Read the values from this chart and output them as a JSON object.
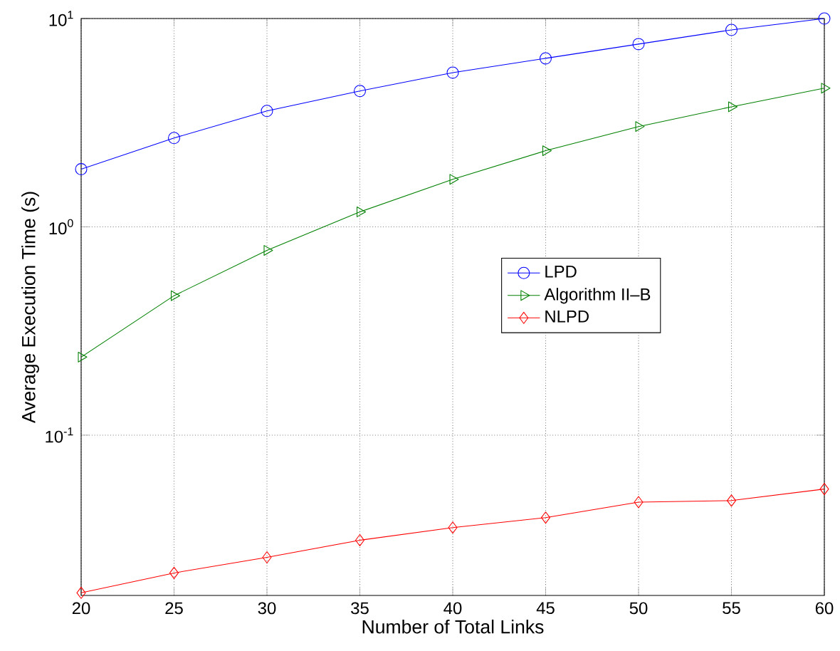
{
  "chart_data": {
    "type": "line",
    "xlabel": "Number of Total Links",
    "ylabel": "Average Execution Time (s)",
    "x": [
      20,
      25,
      30,
      35,
      40,
      45,
      50,
      55,
      60
    ],
    "series": [
      {
        "name": "LPD",
        "color": "#0000ff",
        "marker": "circle",
        "values": [
          1.89,
          2.67,
          3.6,
          4.49,
          5.5,
          6.44,
          7.54,
          8.82,
          10
        ]
      },
      {
        "name": "Algorithm II–B",
        "color": "#008000",
        "marker": "triangle",
        "values": [
          0.237,
          0.467,
          0.771,
          1.18,
          1.69,
          2.32,
          3.03,
          3.77,
          4.63
        ]
      },
      {
        "name": "NLPD",
        "color": "#ff0000",
        "marker": "diamond",
        "values": [
          0.0175,
          0.0218,
          0.0259,
          0.0313,
          0.036,
          0.0402,
          0.0477,
          0.0485,
          0.0551
        ]
      }
    ],
    "xlim": [
      20,
      60
    ],
    "ylim": [
      0.017,
      10
    ],
    "xticks": [
      20,
      25,
      30,
      35,
      40,
      45,
      50,
      55,
      60
    ],
    "yticks": [
      {
        "value": 0.1,
        "label": "10$^{-1}$"
      },
      {
        "value": 1,
        "label": "10$^{0}$"
      },
      {
        "value": 10,
        "label": "10$^{1}$"
      }
    ],
    "log": "y",
    "grid": true,
    "legend": "right",
    "line_style": "solid"
  }
}
